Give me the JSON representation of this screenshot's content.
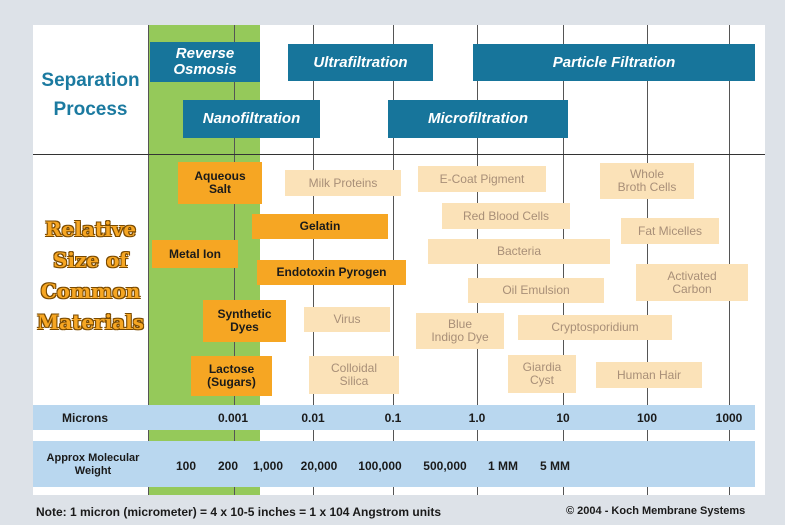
{
  "section_labels": {
    "separation_process": [
      "Separation",
      "Process"
    ],
    "relative_size": [
      "Relative",
      "Size of",
      "Common",
      "Materials"
    ]
  },
  "processes": {
    "reverse_osmosis": [
      "Reverse",
      "Osmosis"
    ],
    "ultrafiltration": "Ultrafiltration",
    "particle_filtration": "Particle Filtration",
    "nanofiltration": "Nanofiltration",
    "microfiltration": "Microfiltration"
  },
  "materials_highlighted": {
    "aqueous_salt": [
      "Aqueous",
      "Salt"
    ],
    "gelatin": "Gelatin",
    "metal_ion": "Metal Ion",
    "endotoxin_pyrogen": "Endotoxin Pyrogen",
    "synthetic_dyes": [
      "Synthetic",
      "Dyes"
    ],
    "lactose": [
      "Lactose",
      "(Sugars)"
    ]
  },
  "materials_other": {
    "milk_proteins": "Milk Proteins",
    "e_coat_pigment": "E-Coat Pigment",
    "whole_broth_cells": [
      "Whole",
      "Broth Cells"
    ],
    "red_blood_cells": "Red Blood Cells",
    "fat_micelles": "Fat Micelles",
    "bacteria": "Bacteria",
    "activated_carbon": [
      "Activated",
      "Carbon"
    ],
    "oil_emulsion": "Oil Emulsion",
    "virus": "Virus",
    "blue_indigo_dye": [
      "Blue",
      "Indigo Dye"
    ],
    "cryptosporidium": "Cryptosporidium",
    "colloidal_silica": [
      "Colloidal",
      "Silica"
    ],
    "giardia_cyst": [
      "Giardia",
      "Cyst"
    ],
    "human_hair": "Human Hair"
  },
  "microns": {
    "label": "Microns",
    "ticks": [
      "0.001",
      "0.01",
      "0.1",
      "1.0",
      "10",
      "100",
      "1000"
    ]
  },
  "molecular_weight": {
    "label": [
      "Approx Molecular",
      "Weight"
    ],
    "ticks": [
      "100",
      "200",
      "1,000",
      "20,000",
      "100,000",
      "500,000",
      "1 MM",
      "5 MM"
    ]
  },
  "footer": {
    "note": "Note: 1 micron (micrometer) = 4 x 10-5 inches = 1 x 104 Angstrom units",
    "copyright": "© 2004 - Koch Membrane Systems"
  },
  "colors": {
    "process_blue": "#17759b",
    "highlight_orange": "#f6a623",
    "material_peach": "#fbe2b8",
    "membrane_green": "#95c95a",
    "band_blue": "#b9d7ef"
  }
}
